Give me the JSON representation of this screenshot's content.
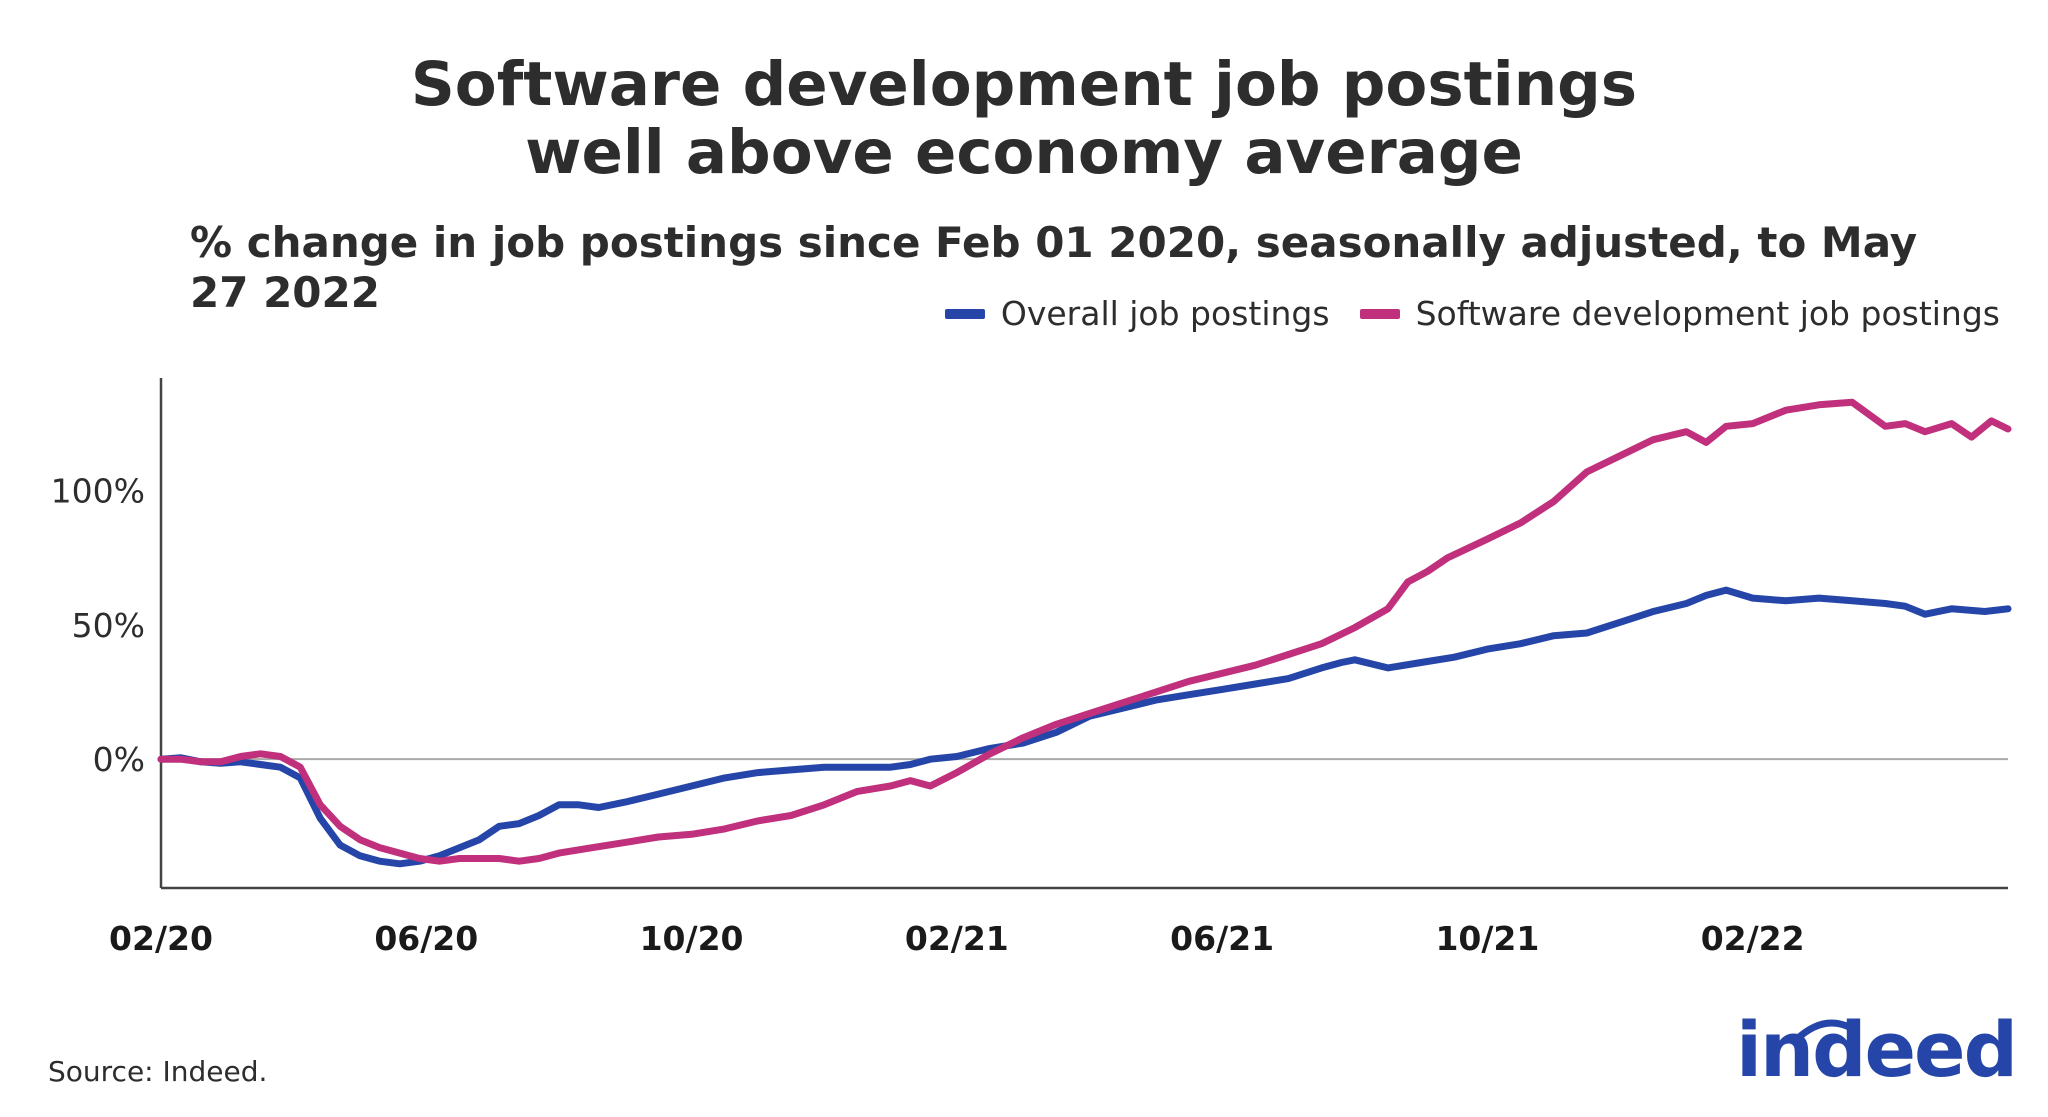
{
  "chart_data": {
    "type": "line",
    "title": "Software development job postings well above economy average",
    "title_lines": [
      "Software development job postings",
      "well above economy average"
    ],
    "subtitle": "% change in job postings since Feb 01 2020, seasonally adjusted, to May 27 2022",
    "xlabel": "",
    "ylabel": "",
    "xlim": [
      0,
      27.85
    ],
    "ylim": [
      -48,
      142
    ],
    "y_ticks": [
      0,
      50,
      100
    ],
    "y_tick_labels": [
      "0%",
      "50%",
      "100%"
    ],
    "x_ticks": [
      0,
      4,
      8,
      12,
      16,
      20,
      24
    ],
    "x_tick_labels": [
      "02/20",
      "06/20",
      "10/20",
      "02/21",
      "06/21",
      "10/21",
      "02/22"
    ],
    "reference_line": 0,
    "legend_position": "top-right",
    "series": [
      {
        "name": "Overall job postings",
        "color": "#2546a8",
        "x": [
          0,
          0.3,
          0.6,
          0.9,
          1.2,
          1.5,
          1.8,
          2.1,
          2.4,
          2.7,
          3.0,
          3.3,
          3.6,
          3.9,
          4.2,
          4.5,
          4.8,
          5.1,
          5.4,
          5.7,
          6.0,
          6.3,
          6.6,
          7.0,
          7.5,
          8.0,
          8.5,
          9.0,
          9.5,
          10.0,
          10.5,
          11.0,
          11.3,
          11.6,
          12.0,
          12.5,
          13.0,
          13.5,
          14.0,
          14.5,
          15.0,
          15.5,
          16.0,
          16.5,
          17.0,
          17.5,
          17.8,
          18.0,
          18.5,
          19.0,
          19.5,
          20.0,
          20.5,
          21.0,
          21.5,
          22.0,
          22.5,
          23.0,
          23.3,
          23.6,
          24.0,
          24.5,
          25.0,
          25.5,
          26.0,
          26.3,
          26.6,
          27.0,
          27.5,
          27.85
        ],
        "values": [
          0,
          0.5,
          -1,
          -1.5,
          -1,
          -2,
          -3,
          -7,
          -22,
          -32,
          -36,
          -38,
          -39,
          -38,
          -36,
          -33,
          -30,
          -25,
          -24,
          -21,
          -17,
          -17,
          -18,
          -16,
          -13,
          -10,
          -7,
          -5,
          -4,
          -3,
          -3,
          -3,
          -2,
          0,
          1,
          4,
          6,
          10,
          16,
          19,
          22,
          24,
          26,
          28,
          30,
          34,
          36,
          37,
          34,
          36,
          38,
          41,
          43,
          46,
          47,
          51,
          55,
          58,
          61,
          63,
          60,
          59,
          60,
          59,
          58,
          57,
          54,
          56,
          55,
          56
        ]
      },
      {
        "name": "Software development job postings",
        "color": "#c0307c",
        "x": [
          0,
          0.3,
          0.6,
          0.9,
          1.2,
          1.5,
          1.8,
          2.1,
          2.4,
          2.7,
          3.0,
          3.3,
          3.6,
          3.9,
          4.2,
          4.5,
          4.8,
          5.1,
          5.4,
          5.7,
          6.0,
          6.5,
          7.0,
          7.5,
          8.0,
          8.5,
          9.0,
          9.5,
          10.0,
          10.5,
          11.0,
          11.3,
          11.6,
          12.0,
          12.5,
          13.0,
          13.5,
          14.0,
          14.5,
          15.0,
          15.5,
          16.0,
          16.5,
          17.0,
          17.5,
          18.0,
          18.5,
          18.8,
          19.1,
          19.4,
          20.0,
          20.5,
          21.0,
          21.5,
          22.0,
          22.5,
          23.0,
          23.3,
          23.6,
          24.0,
          24.5,
          25.0,
          25.5,
          26.0,
          26.3,
          26.6,
          27.0,
          27.3,
          27.6,
          27.85
        ],
        "values": [
          0,
          0,
          -1,
          -1,
          1,
          2,
          1,
          -3,
          -17,
          -25,
          -30,
          -33,
          -35,
          -37,
          -38,
          -37,
          -37,
          -37,
          -38,
          -37,
          -35,
          -33,
          -31,
          -29,
          -28,
          -26,
          -23,
          -21,
          -17,
          -12,
          -10,
          -8,
          -10,
          -5,
          2,
          8,
          13,
          17,
          21,
          25,
          29,
          32,
          35,
          39,
          43,
          49,
          56,
          66,
          70,
          75,
          82,
          88,
          96,
          107,
          113,
          119,
          122,
          118,
          124,
          125,
          130,
          132,
          133,
          124,
          125,
          122,
          125,
          120,
          126,
          123
        ]
      }
    ]
  },
  "source": "Source: Indeed.",
  "logo_text": "indeed"
}
